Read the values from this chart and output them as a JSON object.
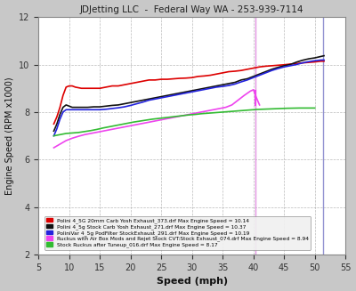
{
  "title": "JDJetting LLC  -  Federal Way WA - 253-939-7114",
  "xlabel": "Speed (mph)",
  "ylabel": "Engine Speed (RPM x1000)",
  "xlim": [
    5,
    55
  ],
  "ylim": [
    2,
    12
  ],
  "xticks": [
    5,
    10,
    15,
    20,
    25,
    30,
    35,
    40,
    45,
    50,
    55
  ],
  "yticks": [
    2,
    4,
    6,
    8,
    10,
    12
  ],
  "fig_bg": "#c8c8c8",
  "plot_bg": "#ffffff",
  "grid_color": "#aaaaaa",
  "title_color": "#222222",
  "series": [
    {
      "label": "Polini 4_5G 20mm Carb Yosh Exhaust_373.drf Max Engine Speed = 10.14",
      "color": "#dd0000",
      "x": [
        7.5,
        8.0,
        8.5,
        9.0,
        9.5,
        10.0,
        10.5,
        11.0,
        12.0,
        13.0,
        14.0,
        15.0,
        16.0,
        17.0,
        18.0,
        19.0,
        20.0,
        21.0,
        22.0,
        23.0,
        24.0,
        25.0,
        26.0,
        27.0,
        28.0,
        29.0,
        30.0,
        31.0,
        32.0,
        33.0,
        34.0,
        35.0,
        36.0,
        37.0,
        38.0,
        39.0,
        40.0,
        41.0,
        42.0,
        43.0,
        44.0,
        45.0,
        46.0,
        47.0,
        48.0,
        49.0,
        50.0,
        51.0,
        51.5
      ],
      "y": [
        7.5,
        7.8,
        8.2,
        8.7,
        9.05,
        9.1,
        9.1,
        9.05,
        9.0,
        9.0,
        9.0,
        9.0,
        9.05,
        9.1,
        9.1,
        9.15,
        9.2,
        9.25,
        9.3,
        9.35,
        9.35,
        9.38,
        9.38,
        9.4,
        9.42,
        9.43,
        9.45,
        9.5,
        9.52,
        9.55,
        9.6,
        9.65,
        9.7,
        9.72,
        9.75,
        9.8,
        9.85,
        9.9,
        9.93,
        9.95,
        9.97,
        9.99,
        10.02,
        10.04,
        10.07,
        10.09,
        10.11,
        10.14,
        10.14
      ]
    },
    {
      "label": "Polini 4_5g Stock Carb Yosh Exhaust_271.drf Max Engine Speed = 10.37",
      "color": "#111111",
      "x": [
        7.5,
        8.0,
        8.5,
        9.0,
        9.5,
        10.0,
        10.5,
        11.0,
        12.0,
        13.0,
        14.0,
        15.0,
        16.0,
        17.0,
        18.0,
        19.0,
        20.0,
        21.0,
        22.0,
        23.0,
        24.0,
        25.0,
        26.0,
        27.0,
        28.0,
        29.0,
        30.0,
        31.0,
        32.0,
        33.0,
        34.0,
        35.0,
        36.0,
        37.0,
        38.0,
        39.0,
        40.0,
        41.0,
        42.0,
        43.0,
        44.0,
        45.0,
        46.0,
        47.0,
        48.0,
        49.0,
        50.0,
        51.0,
        51.5
      ],
      "y": [
        7.2,
        7.5,
        7.9,
        8.2,
        8.3,
        8.25,
        8.2,
        8.2,
        8.2,
        8.2,
        8.22,
        8.22,
        8.25,
        8.28,
        8.3,
        8.35,
        8.4,
        8.45,
        8.5,
        8.55,
        8.6,
        8.65,
        8.7,
        8.75,
        8.8,
        8.85,
        8.9,
        8.95,
        9.0,
        9.05,
        9.1,
        9.15,
        9.2,
        9.25,
        9.35,
        9.4,
        9.5,
        9.6,
        9.7,
        9.8,
        9.88,
        9.95,
        10.0,
        10.1,
        10.18,
        10.24,
        10.28,
        10.34,
        10.37
      ]
    },
    {
      "label": "PoliniVar 4_5g PodFilter StockExhaust_291.drf Max Engine Speed = 10.19",
      "color": "#2222dd",
      "x": [
        7.5,
        8.0,
        8.5,
        9.0,
        9.5,
        10.0,
        10.5,
        11.0,
        12.0,
        13.0,
        14.0,
        15.0,
        16.0,
        17.0,
        18.0,
        19.0,
        20.0,
        21.0,
        22.0,
        23.0,
        24.0,
        25.0,
        26.0,
        27.0,
        28.0,
        29.0,
        30.0,
        31.0,
        32.0,
        33.0,
        34.0,
        35.0,
        36.0,
        37.0,
        38.0,
        39.0,
        40.0,
        41.0,
        42.0,
        43.0,
        44.0,
        45.0,
        46.0,
        47.0,
        48.0,
        49.0,
        50.0,
        51.0,
        51.5
      ],
      "y": [
        7.0,
        7.3,
        7.7,
        8.0,
        8.1,
        8.1,
        8.1,
        8.1,
        8.1,
        8.1,
        8.1,
        8.1,
        8.12,
        8.15,
        8.18,
        8.22,
        8.28,
        8.35,
        8.42,
        8.5,
        8.55,
        8.6,
        8.65,
        8.7,
        8.75,
        8.8,
        8.85,
        8.9,
        8.95,
        9.0,
        9.05,
        9.08,
        9.12,
        9.18,
        9.27,
        9.35,
        9.45,
        9.55,
        9.65,
        9.75,
        9.83,
        9.9,
        9.95,
        10.0,
        10.07,
        10.12,
        10.16,
        10.19,
        10.19
      ]
    },
    {
      "label": "Ruckus with Air Box Mods and Rejet Stock CVT:Stock Exhaust_074.drf Max Engine Speed = 8.94",
      "color": "#ee44ee",
      "x": [
        7.5,
        8.5,
        9.5,
        10.5,
        11.5,
        12.5,
        13.5,
        14.5,
        15.5,
        16.5,
        17.5,
        18.5,
        19.5,
        20.5,
        21.5,
        22.5,
        23.5,
        24.5,
        25.5,
        26.5,
        27.5,
        28.5,
        29.5,
        30.5,
        31.5,
        32.5,
        33.5,
        34.5,
        35.5,
        36.5,
        37.5,
        38.5,
        39.5,
        40.0,
        40.5,
        41.0
      ],
      "y": [
        6.5,
        6.65,
        6.8,
        6.9,
        6.98,
        7.05,
        7.1,
        7.15,
        7.2,
        7.25,
        7.3,
        7.35,
        7.4,
        7.45,
        7.5,
        7.55,
        7.6,
        7.65,
        7.7,
        7.75,
        7.8,
        7.85,
        7.9,
        7.95,
        8.0,
        8.05,
        8.1,
        8.15,
        8.2,
        8.3,
        8.5,
        8.7,
        8.88,
        8.94,
        8.6,
        8.3
      ]
    },
    {
      "label": "Stock Ruckus after Tuneup_016.drf Max Engine Speed = 8.17",
      "color": "#33bb33",
      "x": [
        7.5,
        8.5,
        9.5,
        10.5,
        11.5,
        12.5,
        13.5,
        14.5,
        15.5,
        16.5,
        17.5,
        18.5,
        19.5,
        20.5,
        21.5,
        22.5,
        23.5,
        24.5,
        25.5,
        26.5,
        27.5,
        28.5,
        29.5,
        30.5,
        31.5,
        32.5,
        33.5,
        34.5,
        35.5,
        36.5,
        37.5,
        38.5,
        39.5,
        40.5,
        41.5,
        42.5,
        43.5,
        44.5,
        45.5,
        46.5,
        47.5,
        48.5,
        49.5,
        50.0
      ],
      "y": [
        7.0,
        7.05,
        7.1,
        7.12,
        7.14,
        7.18,
        7.22,
        7.27,
        7.33,
        7.38,
        7.43,
        7.48,
        7.53,
        7.58,
        7.62,
        7.66,
        7.7,
        7.73,
        7.76,
        7.79,
        7.82,
        7.85,
        7.88,
        7.9,
        7.93,
        7.95,
        7.97,
        7.99,
        8.01,
        8.03,
        8.05,
        8.07,
        8.09,
        8.11,
        8.12,
        8.13,
        8.14,
        8.15,
        8.16,
        8.165,
        8.17,
        8.17,
        8.17,
        8.17
      ]
    }
  ],
  "vline1_x": 51.3,
  "vline1_color": "#8888cc",
  "vline2_x": 40.3,
  "vline2_color": "#dd88dd",
  "vline_bottom": 3.0
}
